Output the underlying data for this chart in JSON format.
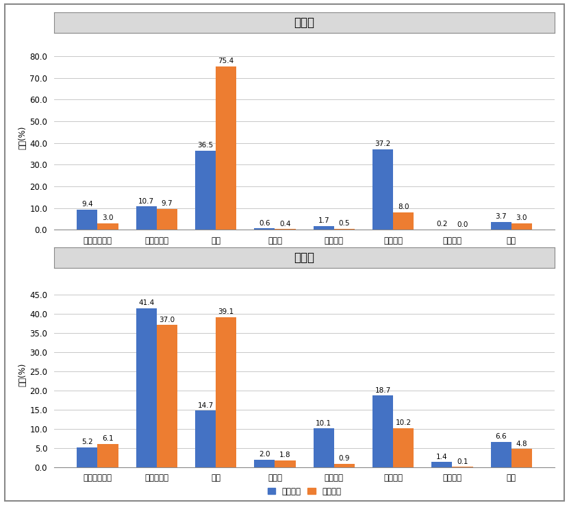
{
  "chart1_title": "과제수",
  "chart2_title": "투자액",
  "categories": [
    "국공립연구소",
    "출연연구소",
    "대학",
    "대기업",
    "중견기업",
    "중소기업",
    "정부부처",
    "기타"
  ],
  "chart1_single": [
    9.4,
    10.7,
    36.5,
    0.6,
    1.7,
    37.2,
    0.2,
    3.7
  ],
  "chart1_fusion": [
    3.0,
    9.7,
    75.4,
    0.4,
    0.5,
    8.0,
    0.0,
    3.0
  ],
  "chart2_single": [
    5.2,
    41.4,
    14.7,
    2.0,
    10.1,
    18.7,
    1.4,
    6.6
  ],
  "chart2_fusion": [
    6.1,
    37.0,
    39.1,
    1.8,
    0.9,
    10.2,
    0.1,
    4.8
  ],
  "color_single": "#4472C4",
  "color_fusion": "#ED7D31",
  "ylabel": "비중(%)",
  "legend_single": "단일과제",
  "legend_fusion": "융합과제",
  "chart1_ylim": [
    0,
    85
  ],
  "chart1_yticks": [
    0.0,
    10.0,
    20.0,
    30.0,
    40.0,
    50.0,
    60.0,
    70.0,
    80.0
  ],
  "chart2_ylim": [
    0,
    48
  ],
  "chart2_yticks": [
    0.0,
    5.0,
    10.0,
    15.0,
    20.0,
    25.0,
    30.0,
    35.0,
    40.0,
    45.0
  ],
  "bar_width": 0.35,
  "title_bg_color": "#D9D9D9",
  "border_color": "#888888",
  "grid_color": "#C8C8C8",
  "label_fontsize": 7.5,
  "axis_fontsize": 8.5,
  "title_fontsize": 12
}
